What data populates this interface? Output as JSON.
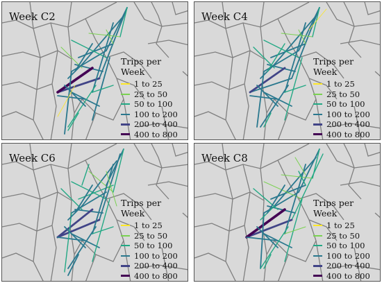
{
  "legend": {
    "title": "Trips per Week",
    "items": [
      {
        "label": "1 to 25",
        "color": "#fde725"
      },
      {
        "label": "25 to 50",
        "color": "#7ad151"
      },
      {
        "label": "50 to 100",
        "color": "#22a884"
      },
      {
        "label": "100 to 200",
        "color": "#2a788e"
      },
      {
        "label": "200 to 400",
        "color": "#414487"
      },
      {
        "label": "400 to 800",
        "color": "#440154"
      }
    ]
  },
  "panels": [
    {
      "title": "Week C2"
    },
    {
      "title": "Week C4"
    },
    {
      "title": "Week C6"
    },
    {
      "title": "Week C8"
    }
  ],
  "colors": {
    "land": "#d9d9d9",
    "boundary": "#7f7f7f"
  }
}
